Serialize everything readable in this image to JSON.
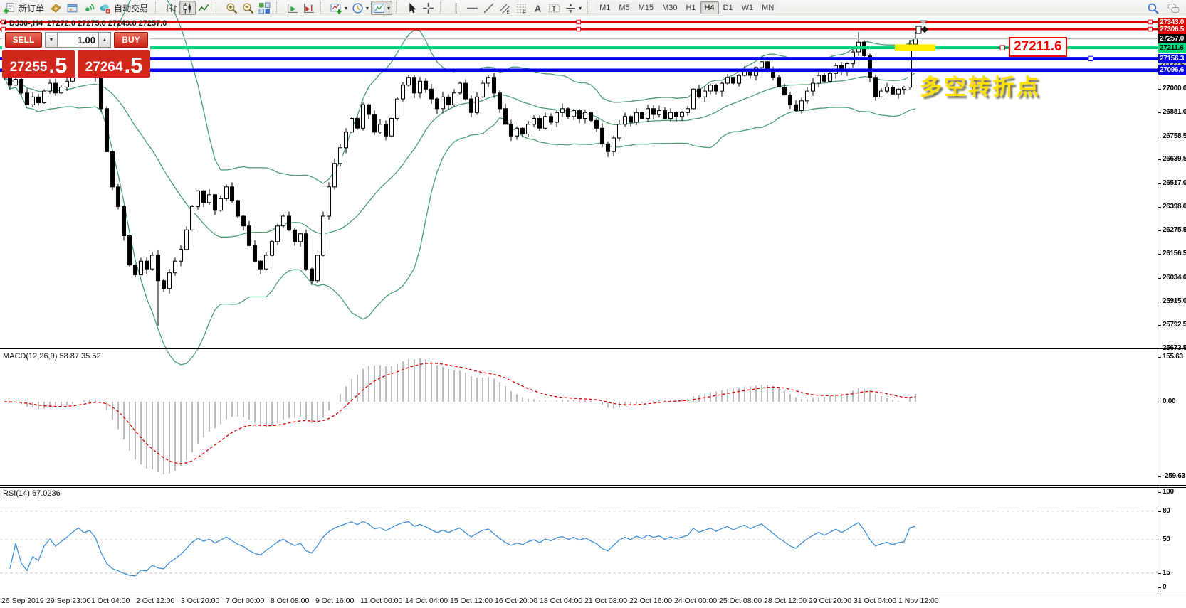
{
  "window": {
    "title_marker": "▲",
    "chart_title": "DJ30-,H4  27272.0 27275.0 27249.0 27257.0"
  },
  "toolbar": {
    "items": [
      {
        "type": "icon-label",
        "icon": "new-order-icon",
        "label": "新订单",
        "name": "new-order-button"
      },
      {
        "type": "icon",
        "icon": "market-watch-icon",
        "name": "market-watch-button"
      },
      {
        "type": "icon",
        "icon": "navigator-icon",
        "name": "navigator-button"
      },
      {
        "type": "icon",
        "icon": "signal-icon",
        "name": "signals-button"
      },
      {
        "type": "icon-label",
        "icon": "autotrading-icon",
        "label": "自动交易",
        "name": "autotrading-button"
      },
      {
        "type": "sep"
      },
      {
        "type": "icon",
        "icon": "bar-chart-icon",
        "name": "bar-chart-button"
      },
      {
        "type": "icon",
        "icon": "candlestick-icon",
        "name": "candlestick-button",
        "pressed": true
      },
      {
        "type": "icon",
        "icon": "line-chart-icon",
        "name": "line-chart-button"
      },
      {
        "type": "sep"
      },
      {
        "type": "icon",
        "icon": "zoom-in-icon",
        "name": "zoom-in-button"
      },
      {
        "type": "icon",
        "icon": "zoom-out-icon",
        "name": "zoom-out-button"
      },
      {
        "type": "icon",
        "icon": "tile-windows-icon",
        "name": "tile-windows-button"
      },
      {
        "type": "sep"
      },
      {
        "type": "icon",
        "icon": "auto-scroll-icon",
        "name": "auto-scroll-button"
      },
      {
        "type": "icon",
        "icon": "chart-shift-icon",
        "name": "chart-shift-button"
      },
      {
        "type": "sep"
      },
      {
        "type": "icon",
        "icon": "new-chart-icon",
        "name": "new-chart-button",
        "dropdown": true
      },
      {
        "type": "icon",
        "icon": "period-icon",
        "name": "periods-button",
        "dropdown": true
      },
      {
        "type": "icon",
        "icon": "template-icon",
        "name": "templates-button",
        "dropdown": true,
        "pressed": true
      },
      {
        "type": "sep"
      },
      {
        "type": "icon",
        "icon": "cursor-icon",
        "name": "cursor-button"
      },
      {
        "type": "icon",
        "icon": "crosshair-icon",
        "name": "crosshair-button"
      },
      {
        "type": "sep"
      },
      {
        "type": "icon",
        "icon": "vline-icon",
        "name": "vertical-line-button"
      },
      {
        "type": "icon",
        "icon": "hline-icon",
        "name": "horizontal-line-button"
      },
      {
        "type": "icon",
        "icon": "trendline-icon",
        "name": "trendline-button"
      },
      {
        "type": "icon",
        "icon": "channel-icon",
        "name": "equidistant-channel-button"
      },
      {
        "type": "icon",
        "icon": "fibo-icon",
        "name": "fibonacci-button"
      },
      {
        "type": "icon",
        "icon": "text-icon",
        "name": "text-button"
      },
      {
        "type": "icon",
        "icon": "label-icon",
        "name": "text-label-button"
      },
      {
        "type": "icon",
        "icon": "shapes-icon",
        "name": "arrows-button",
        "dropdown": true
      },
      {
        "type": "sep"
      }
    ],
    "timeframes": [
      {
        "label": "M1"
      },
      {
        "label": "M5"
      },
      {
        "label": "M15"
      },
      {
        "label": "M30"
      },
      {
        "label": "H1"
      },
      {
        "label": "H4",
        "active": true
      },
      {
        "label": "D1"
      },
      {
        "label": "W1"
      },
      {
        "label": "MN"
      }
    ],
    "right_items": [
      {
        "icon": "search-icon",
        "name": "search-button"
      },
      {
        "icon": "chat-icon",
        "name": "chat-button"
      }
    ],
    "dropdown_glyph": "▾"
  },
  "trade_panel": {
    "sell_label": "SELL",
    "buy_label": "BUY",
    "volume": "1.00",
    "down_glyph": "▼",
    "up_glyph": "▲",
    "sell_price_main": "27255",
    "sell_price_frac": ".5",
    "buy_price_main": "27264",
    "buy_price_frac": ".5"
  },
  "chart_data": {
    "type": "candlestick",
    "symbol": "DJ30-,H4",
    "price_scale": {
      "top_price": 27368.5,
      "bottom_price": 25673.5
    },
    "closes": [
      27060,
      27020,
      27050,
      26980,
      26920,
      26960,
      26930,
      26990,
      27030,
      26980,
      27010,
      27040,
      27080,
      27120,
      27090,
      27110,
      27060,
      26900,
      26680,
      26500,
      26400,
      26250,
      26100,
      26050,
      26120,
      26080,
      26150,
      26020,
      25980,
      26060,
      26120,
      26180,
      26280,
      26400,
      26480,
      26420,
      26460,
      26380,
      26440,
      26500,
      26430,
      26350,
      26300,
      26200,
      26120,
      26080,
      26150,
      26220,
      26300,
      26350,
      26280,
      26220,
      26260,
      26080,
      26020,
      26150,
      26350,
      26500,
      26620,
      26700,
      26780,
      26850,
      26800,
      26920,
      26870,
      26780,
      26820,
      26760,
      26850,
      26950,
      27020,
      27060,
      26980,
      27040,
      27000,
      26950,
      26900,
      26960,
      26920,
      26980,
      27030,
      26950,
      26880,
      26960,
      27030,
      27060,
      26980,
      26900,
      26820,
      26760,
      26800,
      26770,
      26820,
      26850,
      26800,
      26860,
      26830,
      26880,
      26900,
      26860,
      26890,
      26850,
      26880,
      26840,
      26800,
      26720,
      26680,
      26750,
      26820,
      26860,
      26830,
      26880,
      26850,
      26900,
      26870,
      26890,
      26850,
      26880,
      26860,
      26880,
      26900,
      27000,
      26960,
      26990,
      27020,
      26990,
      27030,
      27060,
      27030,
      27070,
      27100,
      27070,
      27110,
      27140,
      27100,
      27060,
      27010,
      26970,
      26920,
      26890,
      26940,
      26990,
      27030,
      27070,
      27040,
      27080,
      27120,
      27090,
      27130,
      27190,
      27240,
      27170,
      27060,
      26960,
      26990,
      27010,
      26975,
      27000,
      27010,
      27230,
      27257
    ],
    "bollinger_period": 20,
    "band_color": "#4b9e74",
    "y_ticks": [
      "27000.0",
      "26881.0",
      "26758.5",
      "26639.5",
      "26517.0",
      "26398.0",
      "26275.5",
      "26156.5",
      "26034.0",
      "25915.0",
      "25792.5",
      "25673.5"
    ],
    "y_tick_values": [
      27000.0,
      26881.0,
      26758.5,
      26639.5,
      26517.0,
      26398.0,
      26275.5,
      26156.5,
      26034.0,
      25915.0,
      25792.5,
      25673.5
    ],
    "x_labels": [
      "26 Sep 2019",
      "29 Sep 23:00",
      "1 Oct 04:00",
      "2 Oct 12:00",
      "3 Oct 20:00",
      "7 Oct 00:00",
      "8 Oct 08:00",
      "9 Oct 16:00",
      "11 Oct 00:00",
      "14 Oct 04:00",
      "15 Oct 12:00",
      "16 Oct 20:00",
      "18 Oct 04:00",
      "21 Oct 08:00",
      "22 Oct 16:00",
      "24 Oct 00:00",
      "25 Oct 08:00",
      "28 Oct 12:00",
      "29 Oct 20:00",
      "31 Oct 04:00",
      "1 Nov 12:00"
    ],
    "price_lines": [
      {
        "label": "27343.0",
        "price": 27343.0,
        "bg": "#e00000",
        "fg": "#ffffff",
        "line_color": "#e00000",
        "line_width": 3,
        "handles": "red"
      },
      {
        "label": "27306.5",
        "price": 27306.5,
        "bg": "#e00000",
        "fg": "#ffffff",
        "line_color": "#e00000",
        "line_width": 3,
        "handles": "red"
      },
      {
        "label": "27257.0",
        "price": 27257.0,
        "bg": "#000000",
        "fg": "#ffffff",
        "line_color": "#bdbdbd",
        "line_width": 1.2
      },
      {
        "label": "27211.6",
        "price": 27211.6,
        "bg": "#00dc7d",
        "fg": "#000000",
        "line_color": "#00d279",
        "line_width": 4
      },
      {
        "label": "27122.5",
        "price": 27122.5,
        "bg": "#c6c6c6",
        "fg": "#222222",
        "behind": true
      },
      {
        "label": "27156.3",
        "price": 27156.3,
        "bg": "#0000e6",
        "fg": "#ffffff",
        "line_color": "#0000e6",
        "line_width": 4.5
      },
      {
        "label": "27096.6",
        "price": 27096.6,
        "bg": "#0000e6",
        "fg": "#ffffff",
        "line_color": "#0000e6",
        "line_width": 4.5
      }
    ],
    "annotations": {
      "highlight_color": "#ffec00",
      "price_box_label": "27211.6",
      "cn_label": "多空转折点"
    },
    "macd": {
      "label": "MACD(12,26,9) 58.87 35.52",
      "ticks": [
        [
          "155.63",
          155.63
        ],
        [
          "0.00",
          0
        ],
        [
          "-259.63",
          -259.63
        ]
      ],
      "histogram_color": "#ababab",
      "signal_color": "#e00000"
    },
    "rsi": {
      "label": "RSI(14) 67.0236",
      "line_color": "#3f8fd8",
      "levels": [
        [
          "100",
          100,
          0
        ],
        [
          "80",
          80,
          1
        ],
        [
          "50",
          50,
          1
        ],
        [
          "15",
          15,
          1
        ],
        [
          "0",
          0,
          0
        ]
      ]
    }
  }
}
